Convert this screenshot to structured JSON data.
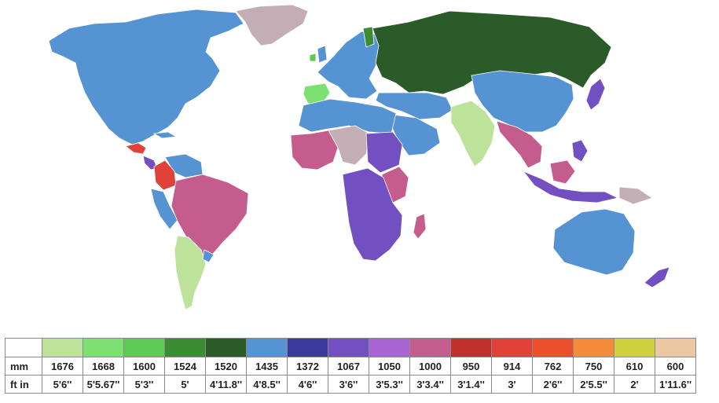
{
  "map": {
    "colors": {
      "ocean": "#ffffff",
      "unknown": "#c4aeb5",
      "g1676": "#bde39b",
      "g1668": "#7de072",
      "g1600": "#5ccc56",
      "g1524": "#3c8c34",
      "g1520": "#2b5b28",
      "g1435": "#5593d3",
      "g1372": "#3b3a9c",
      "g1067": "#7250c2",
      "g1050": "#a964d4",
      "g1000": "#c45d8e",
      "g950": "#c0302c",
      "g914": "#e0423a",
      "g762": "#ec4f2b",
      "g750": "#f38b3a",
      "g610": "#cfd23d",
      "g600": "#ebc8a3",
      "border": "#ffffff"
    }
  },
  "legend": {
    "row_labels": {
      "mm": "mm",
      "ftin": "ft in"
    },
    "entries": [
      {
        "mm": "1676",
        "ftin": "5'6''",
        "color": "#bde39b"
      },
      {
        "mm": "1668",
        "ftin": "5'5.67''",
        "color": "#7de072"
      },
      {
        "mm": "1600",
        "ftin": "5'3''",
        "color": "#5ccc56"
      },
      {
        "mm": "1524",
        "ftin": "5'",
        "color": "#3c8c34"
      },
      {
        "mm": "1520",
        "ftin": "4'11.8''",
        "color": "#2b5b28"
      },
      {
        "mm": "1435",
        "ftin": "4'8.5''",
        "color": "#5593d3"
      },
      {
        "mm": "1372",
        "ftin": "4'6''",
        "color": "#3b3a9c"
      },
      {
        "mm": "1067",
        "ftin": "3'6''",
        "color": "#7250c2"
      },
      {
        "mm": "1050",
        "ftin": "3'5.3''",
        "color": "#a964d4"
      },
      {
        "mm": "1000",
        "ftin": "3'3.4''",
        "color": "#c45d8e"
      },
      {
        "mm": "950",
        "ftin": "3'1.4''",
        "color": "#c0302c"
      },
      {
        "mm": "914",
        "ftin": "3'",
        "color": "#e0423a"
      },
      {
        "mm": "762",
        "ftin": "2'6''",
        "color": "#ec4f2b"
      },
      {
        "mm": "750",
        "ftin": "2'5.5''",
        "color": "#f38b3a"
      },
      {
        "mm": "610",
        "ftin": "2'",
        "color": "#cfd23d"
      },
      {
        "mm": "600",
        "ftin": "1'11.6''",
        "color": "#ebc8a3"
      }
    ]
  }
}
